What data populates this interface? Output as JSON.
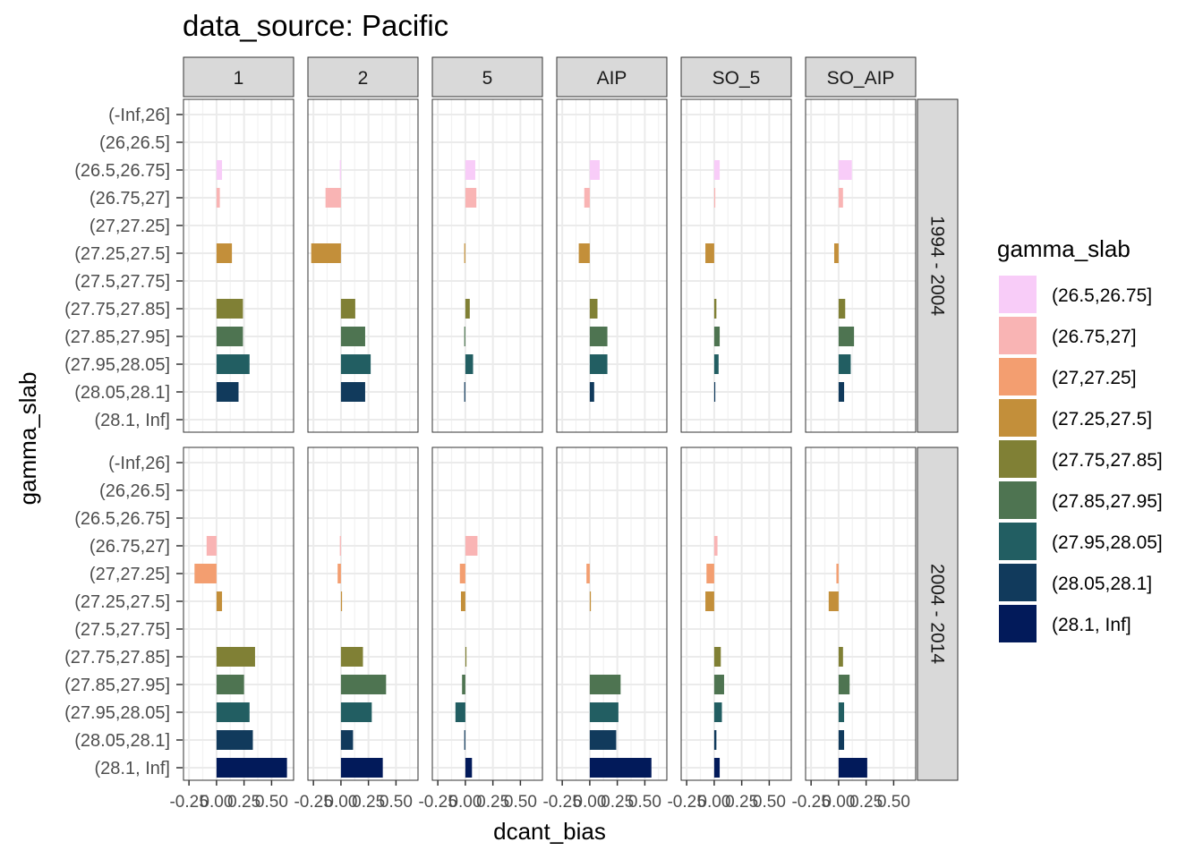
{
  "chart_data": {
    "type": "bar",
    "orientation": "horizontal",
    "faceted": true,
    "title": "data_source: Pacific",
    "xlabel": "dcant_bias",
    "ylabel": "gamma_slab",
    "x_ticks": [
      "-0.25",
      "0.00",
      "0.25",
      "0.50"
    ],
    "xlim": [
      -0.3,
      0.7
    ],
    "grid": true,
    "legend_title": "gamma_slab",
    "legend_position": "right",
    "column_facets": [
      "1",
      "2",
      "5",
      "AIP",
      "SO_5",
      "SO_AIP"
    ],
    "row_facets": [
      "1994 - 2004",
      "2004 - 2014"
    ],
    "categories": [
      "(-Inf,26]",
      "(26,26.5]",
      "(26.5,26.75]",
      "(26.75,27]",
      "(27,27.25]",
      "(27.25,27.5]",
      "(27.5,27.75]",
      "(27.75,27.85]",
      "(27.85,27.95]",
      "(27.95,28.05]",
      "(28.05,28.1]",
      "(28.1, Inf]"
    ],
    "legend": [
      {
        "label": "(26.5,26.75]",
        "color": "#F8CCF8"
      },
      {
        "label": "(26.75,27]",
        "color": "#F9B4B4"
      },
      {
        "label": "(27,27.25]",
        "color": "#F39E70"
      },
      {
        "label": "(27.25,27.5]",
        "color": "#C38F3A"
      },
      {
        "label": "(27.75,27.85]",
        "color": "#808035"
      },
      {
        "label": "(27.85,27.95]",
        "color": "#4E7451"
      },
      {
        "label": "(27.95,28.05]",
        "color": "#225E62"
      },
      {
        "label": "(28.05,28.1]",
        "color": "#113A5C"
      },
      {
        "label": "(28.1, Inf]",
        "color": "#021A5A"
      }
    ],
    "panels": [
      {
        "row": "1994 - 2004",
        "col": "1",
        "values": [
          null,
          null,
          0.05,
          0.03,
          null,
          0.14,
          null,
          0.24,
          0.24,
          0.3,
          0.2,
          null
        ]
      },
      {
        "row": "1994 - 2004",
        "col": "2",
        "values": [
          null,
          null,
          -0.01,
          -0.14,
          null,
          -0.27,
          null,
          0.13,
          0.22,
          0.27,
          0.22,
          null
        ]
      },
      {
        "row": "1994 - 2004",
        "col": "5",
        "values": [
          null,
          null,
          0.09,
          0.1,
          null,
          -0.01,
          null,
          0.04,
          -0.01,
          0.07,
          -0.01,
          null
        ]
      },
      {
        "row": "1994 - 2004",
        "col": "AIP",
        "values": [
          null,
          null,
          0.09,
          -0.05,
          null,
          -0.1,
          null,
          0.07,
          0.16,
          0.16,
          0.04,
          null
        ]
      },
      {
        "row": "1994 - 2004",
        "col": "SO_5",
        "values": [
          null,
          null,
          0.05,
          0.01,
          null,
          -0.08,
          null,
          0.02,
          0.05,
          0.04,
          0.01,
          null
        ]
      },
      {
        "row": "1994 - 2004",
        "col": "SO_AIP",
        "values": [
          null,
          null,
          0.12,
          0.04,
          null,
          -0.04,
          null,
          0.06,
          0.14,
          0.11,
          0.05,
          null
        ]
      },
      {
        "row": "2004 - 2014",
        "col": "1",
        "values": [
          null,
          null,
          null,
          -0.09,
          -0.2,
          0.05,
          null,
          0.35,
          0.25,
          0.3,
          0.33,
          0.64
        ]
      },
      {
        "row": "2004 - 2014",
        "col": "2",
        "values": [
          null,
          null,
          null,
          -0.01,
          -0.03,
          0.01,
          null,
          0.2,
          0.41,
          0.28,
          0.11,
          0.38
        ]
      },
      {
        "row": "2004 - 2014",
        "col": "5",
        "values": [
          null,
          null,
          null,
          0.11,
          -0.05,
          -0.04,
          null,
          0.01,
          -0.03,
          -0.09,
          -0.01,
          0.06
        ]
      },
      {
        "row": "2004 - 2014",
        "col": "AIP",
        "values": [
          null,
          null,
          null,
          null,
          -0.03,
          0.01,
          null,
          null,
          0.28,
          0.26,
          0.24,
          0.56
        ]
      },
      {
        "row": "2004 - 2014",
        "col": "SO_5",
        "values": [
          null,
          null,
          null,
          0.03,
          -0.07,
          -0.08,
          null,
          0.06,
          0.09,
          0.07,
          0.02,
          0.05
        ]
      },
      {
        "row": "2004 - 2014",
        "col": "SO_AIP",
        "values": [
          null,
          null,
          null,
          null,
          -0.02,
          -0.09,
          null,
          0.04,
          0.1,
          0.05,
          0.05,
          0.26
        ]
      }
    ]
  }
}
